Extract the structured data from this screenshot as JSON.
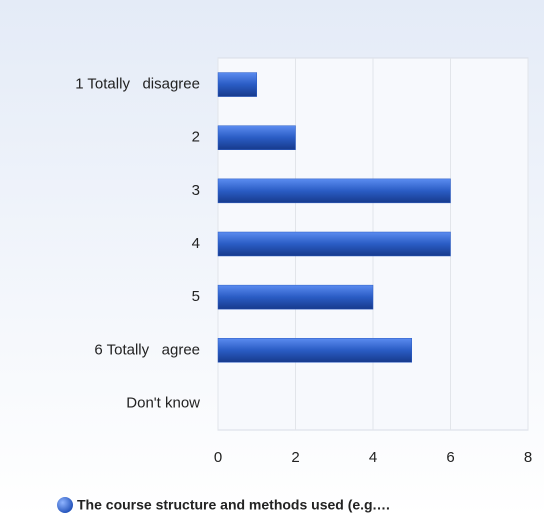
{
  "chart_data": {
    "type": "hbar",
    "categories": [
      "1 Totally   disagree",
      "2",
      "3",
      "4",
      "5",
      "6 Totally   agree",
      "Don't know"
    ],
    "series": [
      {
        "name": "The course structure and methods used (e.g.…",
        "color": "#2a5cc4",
        "values": [
          1,
          2,
          6,
          6,
          4,
          5,
          0
        ]
      }
    ],
    "xlim": [
      0,
      8
    ],
    "xticks": [
      0,
      2,
      4,
      6,
      8
    ],
    "grid": true,
    "legend": "bottom"
  }
}
